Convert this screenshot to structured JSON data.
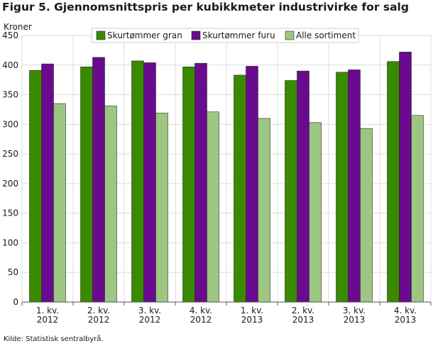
{
  "chart_data": {
    "type": "bar",
    "title": "Figur 5. Gjennomsnittspris per kubikkmeter industrivirke for salg",
    "ylabel": "Kroner",
    "xlabel": "",
    "ylim": [
      0,
      450
    ],
    "yticks": [
      0,
      50,
      100,
      150,
      200,
      250,
      300,
      350,
      400,
      450
    ],
    "grid": true,
    "legend_position": "top",
    "categories": [
      [
        "1. kv.",
        "2012"
      ],
      [
        "2. kv.",
        "2012"
      ],
      [
        "3. kv.",
        "2012"
      ],
      [
        "4. kv.",
        "2012"
      ],
      [
        "1. kv.",
        "2013"
      ],
      [
        "2. kv.",
        "2013"
      ],
      [
        "3. kv.",
        "2013"
      ],
      [
        "4. kv.",
        "2013"
      ]
    ],
    "series": [
      {
        "name": "Skurtømmer gran",
        "color": "#3a8a00",
        "values": [
          391,
          397,
          407,
          397,
          383,
          374,
          388,
          406
        ]
      },
      {
        "name": "Skurtømmer furu",
        "color": "#6a0a8e",
        "values": [
          402,
          413,
          404,
          403,
          398,
          390,
          392,
          422
        ]
      },
      {
        "name": "Alle sortiment",
        "color": "#9dc683",
        "values": [
          335,
          331,
          319,
          321,
          310,
          303,
          293,
          315
        ]
      }
    ]
  },
  "source": "Kilde: Statistisk sentralbyrå."
}
